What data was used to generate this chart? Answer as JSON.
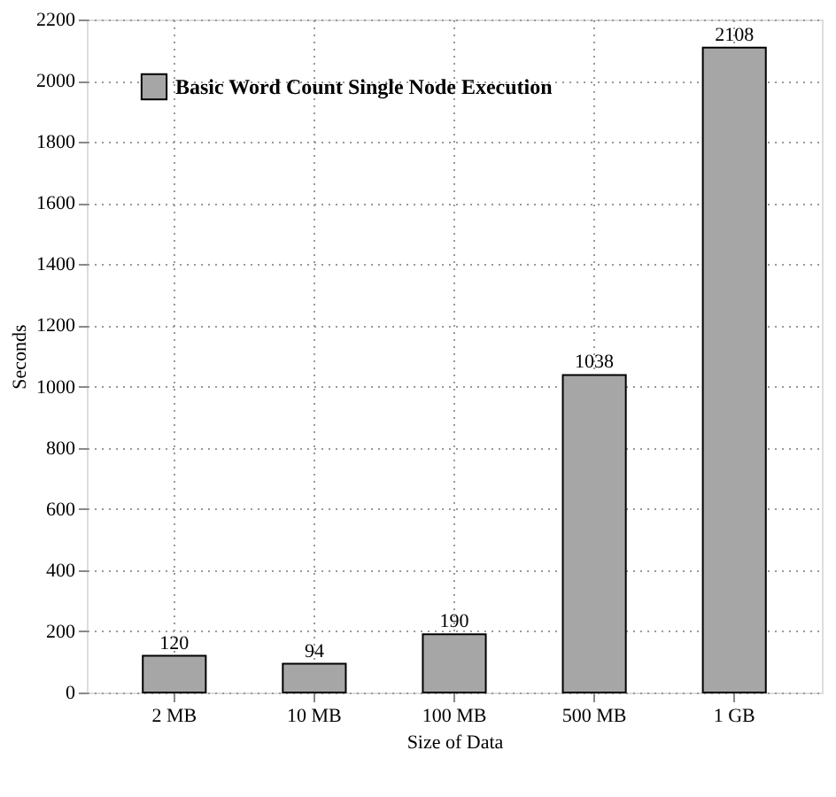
{
  "chart_data": {
    "type": "bar",
    "xlabel": "Size of Data",
    "ylabel": "Seconds",
    "categories": [
      "2 MB",
      "10 MB",
      "100 MB",
      "500 MB",
      "1 GB"
    ],
    "series": [
      {
        "name": "Basic Word Count Single Node Execution",
        "color": "#a6a6a6",
        "values": [
          120,
          94,
          190,
          1038,
          2108
        ]
      }
    ],
    "ylim": [
      0,
      2200
    ],
    "yticks": [
      0,
      200,
      400,
      600,
      800,
      1000,
      1200,
      1400,
      1600,
      1800,
      2000,
      2200
    ],
    "grid": true,
    "legend": "top left",
    "data_labels": true
  }
}
